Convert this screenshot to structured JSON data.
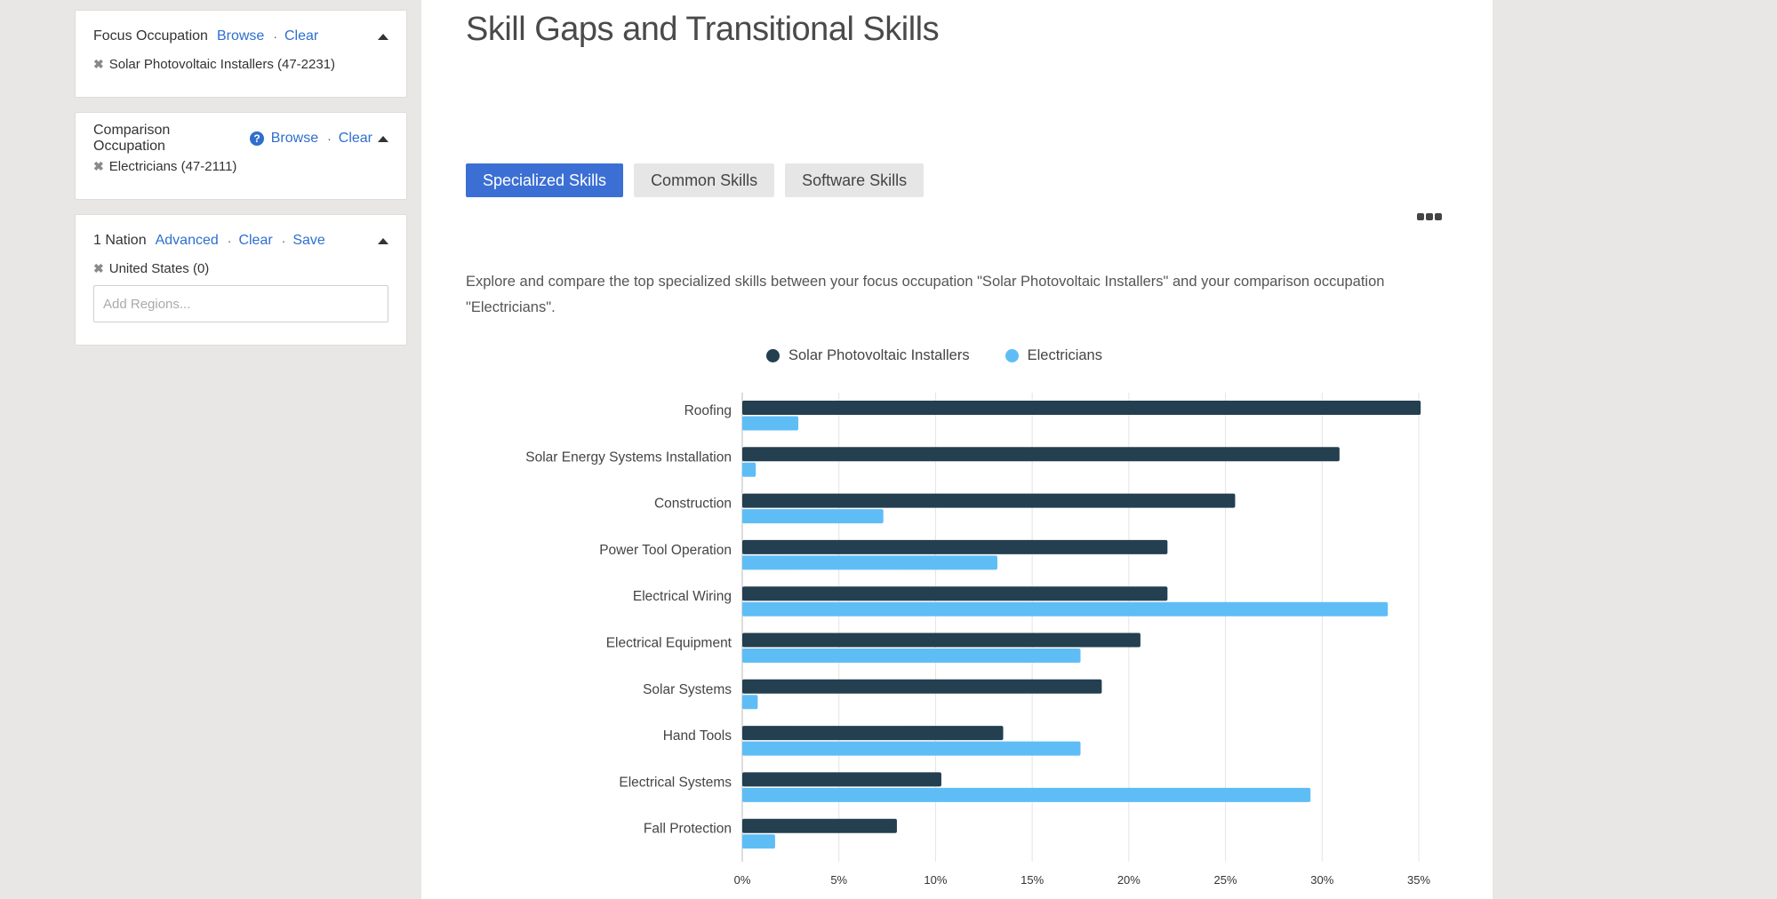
{
  "sidebar": {
    "focus": {
      "title": "Focus Occupation",
      "browse": "Browse",
      "clear": "Clear",
      "chip": "Solar Photovoltaic Installers (47-2231)"
    },
    "comparison": {
      "title": "Comparison Occupation",
      "help": "?",
      "browse": "Browse",
      "clear": "Clear",
      "chip": "Electricians (47-2111)"
    },
    "region": {
      "title": "1 Nation",
      "advanced": "Advanced",
      "clear": "Clear",
      "save": "Save",
      "chip": "United States (0)",
      "placeholder": "Add Regions..."
    }
  },
  "main": {
    "title": "Skill Gaps and Transitional Skills",
    "tabs": [
      {
        "label": "Specialized Skills",
        "active": true
      },
      {
        "label": "Common Skills",
        "active": false
      },
      {
        "label": "Software Skills",
        "active": false
      }
    ],
    "description": "Explore and compare the top specialized skills between your focus occupation \"Solar Photovoltaic Installers\" and your comparison occupation \"Electricians\"."
  },
  "colors": {
    "focus": "#233f50",
    "comparison": "#5fbdf6",
    "accent": "#3b6fd4"
  },
  "chart_data": {
    "type": "bar",
    "orientation": "horizontal",
    "categories": [
      "Roofing",
      "Solar Energy Systems Installation",
      "Construction",
      "Power Tool Operation",
      "Electrical Wiring",
      "Electrical Equipment",
      "Solar Systems",
      "Hand Tools",
      "Electrical Systems",
      "Fall Protection"
    ],
    "series": [
      {
        "name": "Solar Photovoltaic Installers",
        "values": [
          35.1,
          30.9,
          25.5,
          22.0,
          22.0,
          20.6,
          18.6,
          13.5,
          10.3,
          8.0
        ]
      },
      {
        "name": "Electricians",
        "values": [
          2.9,
          0.7,
          7.3,
          13.2,
          33.4,
          17.5,
          0.8,
          17.5,
          29.4,
          1.7
        ]
      }
    ],
    "x_ticks": [
      "0%",
      "5%",
      "10%",
      "15%",
      "20%",
      "25%",
      "30%",
      "35%"
    ],
    "xlim": [
      0,
      35
    ],
    "grid": true,
    "legend": "top-center"
  }
}
